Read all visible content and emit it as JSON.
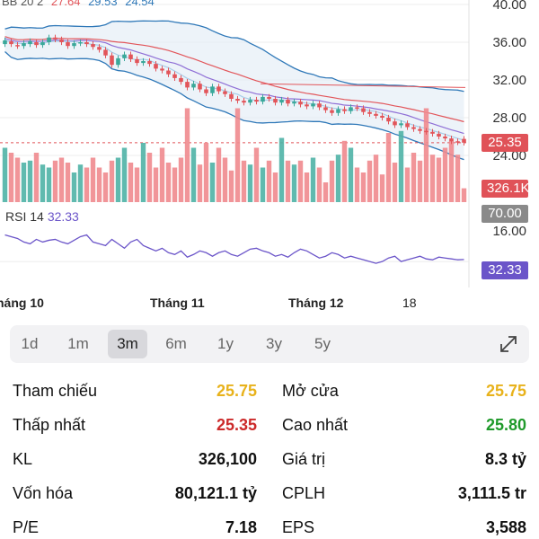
{
  "legend": {
    "name": "BB 20 2",
    "v1": "27.64",
    "v2": "29.53",
    "v3": "24.54"
  },
  "axis": {
    "price_ticks": [
      "40.00",
      "36.00",
      "32.00",
      "28.00",
      "24.00",
      "16.00"
    ],
    "current_price_tag": "25.35",
    "volume_tag": "326.1K",
    "rsi_level_tag": "70.00",
    "rsi_tag": "32.33",
    "x_months": [
      "háng 10",
      "Tháng 11",
      "Tháng 12"
    ],
    "x_day": "18"
  },
  "rsi": {
    "label": "RSI 14",
    "value": "32.33"
  },
  "colors": {
    "up": "#3aa89a",
    "down": "#f08a8e",
    "ma_red": "#e2555a",
    "ma_purple": "#8f6fd6",
    "ma_blue": "#2f78b8",
    "bb_fill": "#e6eef6",
    "rsi_line": "#6b55c9",
    "tag_red": "#e05258",
    "tag_purple": "#6b55c9",
    "tag_gray": "#8a8a8a",
    "yellow": "#e8b21b",
    "red_text": "#cc2a2a",
    "green_text": "#1f9a2a"
  },
  "ranges": [
    "1d",
    "1m",
    "3m",
    "6m",
    "1y",
    "3y",
    "5y"
  ],
  "active_range": "3m",
  "stats_left": [
    {
      "label": "Tham chiếu",
      "value": "25.75",
      "tone": "yellow"
    },
    {
      "label": "Thấp nhất",
      "value": "25.35",
      "tone": "red"
    },
    {
      "label": "KL",
      "value": "326,100",
      "tone": "dark"
    },
    {
      "label": "Vốn hóa",
      "value": "80,121.1 tỷ",
      "tone": "dark"
    },
    {
      "label": "P/E",
      "value": "7.18",
      "tone": "dark"
    }
  ],
  "stats_right": [
    {
      "label": "Mở cửa",
      "value": "25.75",
      "tone": "yellow"
    },
    {
      "label": "Cao nhất",
      "value": "25.80",
      "tone": "green"
    },
    {
      "label": "Giá trị",
      "value": "8.3 tỷ",
      "tone": "dark"
    },
    {
      "label": "CPLH",
      "value": "3,111.5 tr",
      "tone": "dark"
    },
    {
      "label": "EPS",
      "value": "3,588",
      "tone": "dark"
    }
  ],
  "chart_data": {
    "type": "candlestick",
    "ylim": [
      22,
      40
    ],
    "close": [
      36.2,
      35.8,
      35.6,
      35.9,
      36.1,
      35.7,
      36.0,
      36.5,
      36.3,
      36.0,
      35.6,
      35.9,
      36.0,
      35.8,
      35.5,
      35.2,
      34.6,
      33.6,
      34.3,
      34.7,
      34.2,
      33.8,
      34.0,
      33.7,
      33.2,
      33.0,
      32.6,
      32.2,
      31.8,
      31.2,
      31.6,
      31.0,
      30.6,
      31.3,
      30.8,
      30.5,
      30.0,
      29.8,
      29.6,
      29.9,
      29.7,
      30.2,
      30.0,
      29.6,
      29.9,
      29.5,
      29.7,
      29.4,
      29.2,
      29.5,
      29.1,
      28.8,
      28.5,
      28.9,
      28.7,
      29.1,
      29.0,
      28.6,
      28.4,
      28.2,
      28.0,
      27.6,
      27.2,
      27.4,
      27.0,
      26.8,
      26.6,
      26.5,
      26.3,
      26.0,
      25.8,
      25.5,
      25.4,
      25.35
    ],
    "open": [
      35.8,
      36.1,
      35.7,
      35.6,
      35.8,
      36.0,
      35.7,
      36.0,
      36.5,
      36.3,
      36.0,
      35.6,
      35.9,
      36.0,
      35.8,
      35.5,
      35.2,
      34.6,
      33.6,
      34.3,
      34.7,
      34.2,
      33.8,
      34.0,
      33.7,
      33.2,
      33.0,
      32.6,
      32.2,
      31.8,
      31.2,
      31.6,
      31.0,
      30.6,
      31.3,
      30.8,
      30.5,
      30.0,
      29.8,
      29.6,
      29.9,
      29.7,
      30.2,
      30.0,
      29.6,
      29.9,
      29.5,
      29.7,
      29.4,
      29.2,
      29.5,
      29.1,
      28.8,
      28.5,
      28.9,
      28.7,
      29.1,
      29.0,
      28.6,
      28.4,
      28.2,
      28.0,
      27.6,
      27.2,
      27.4,
      27.0,
      26.8,
      26.6,
      26.5,
      26.3,
      26.0,
      25.8,
      25.5,
      25.75
    ],
    "volume_rel": [
      0.55,
      0.5,
      0.45,
      0.4,
      0.42,
      0.5,
      0.38,
      0.35,
      0.42,
      0.45,
      0.4,
      0.3,
      0.38,
      0.35,
      0.45,
      0.35,
      0.3,
      0.42,
      0.45,
      0.55,
      0.4,
      0.35,
      0.6,
      0.5,
      0.35,
      0.55,
      0.4,
      0.35,
      0.45,
      0.95,
      0.55,
      0.38,
      0.6,
      0.4,
      0.55,
      0.45,
      0.32,
      0.95,
      0.42,
      0.38,
      0.55,
      0.35,
      0.42,
      0.3,
      0.65,
      0.42,
      0.38,
      0.42,
      0.3,
      0.45,
      0.35,
      0.2,
      0.42,
      0.48,
      0.62,
      0.55,
      0.35,
      0.3,
      0.42,
      0.48,
      0.28,
      0.7,
      0.4,
      0.72,
      0.35,
      0.5,
      0.42,
      0.95,
      0.48,
      0.45,
      0.55,
      0.62,
      0.48,
      0.14
    ],
    "rsi": [
      60,
      58,
      56,
      52,
      50,
      55,
      52,
      54,
      55,
      52,
      50,
      54,
      58,
      60,
      52,
      50,
      48,
      55,
      50,
      45,
      52,
      55,
      48,
      45,
      42,
      45,
      40,
      38,
      42,
      35,
      38,
      42,
      40,
      36,
      40,
      42,
      38,
      36,
      40,
      44,
      45,
      42,
      40,
      36,
      38,
      35,
      40,
      44,
      42,
      38,
      34,
      36,
      40,
      38,
      34,
      36,
      34,
      32,
      30,
      28,
      30,
      34,
      36,
      30,
      32,
      34,
      36,
      33,
      32,
      35,
      34,
      33,
      32,
      32.33
    ]
  }
}
